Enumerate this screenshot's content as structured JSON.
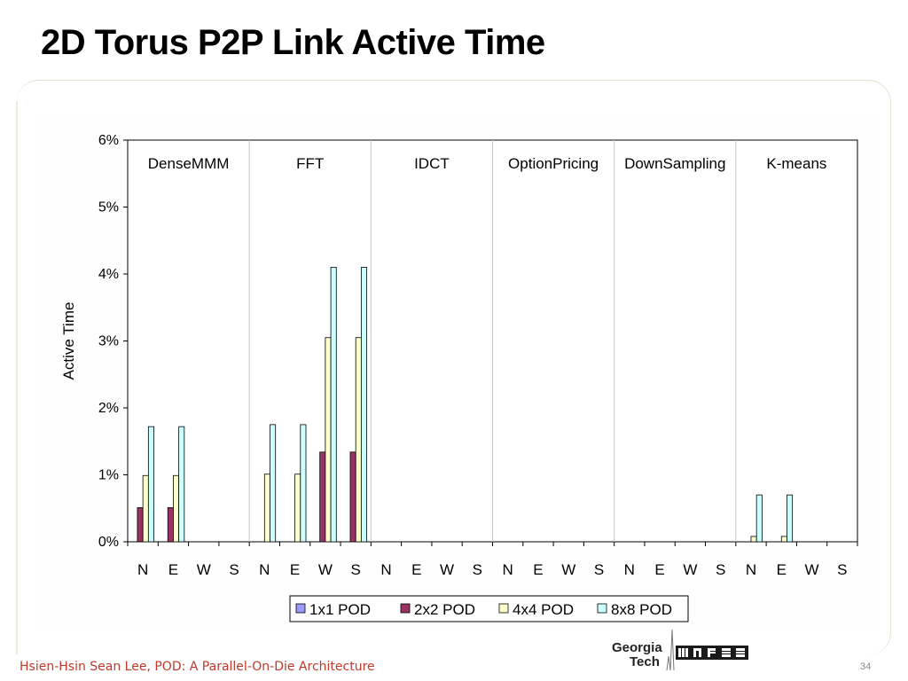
{
  "slide": {
    "title": "2D Torus P2P Link Active Time",
    "footer": "Hsien-Hsin Sean Lee, POD: A Parallel-On-Die Architecture",
    "page_number": "34",
    "logo_primary": "Georgia",
    "logo_secondary": "Tech",
    "logo_mars": "MARS"
  },
  "chart_data": {
    "type": "bar",
    "title": "",
    "xlabel": "",
    "ylabel": "Active Time",
    "ylim": [
      0,
      0.06
    ],
    "yticks": [
      "0%",
      "1%",
      "2%",
      "3%",
      "4%",
      "5%",
      "6%"
    ],
    "groups": [
      "DenseMMM",
      "FFT",
      "IDCT",
      "OptionPricing",
      "DownSampling",
      "K-means"
    ],
    "directions": [
      "N",
      "E",
      "W",
      "S"
    ],
    "legend_position": "bottom",
    "series": [
      {
        "name": "1x1 POD",
        "color": "#9999ff",
        "values": [
          [
            0,
            0,
            0,
            0
          ],
          [
            0,
            0,
            0,
            0
          ],
          [
            0,
            0,
            0,
            0
          ],
          [
            0,
            0,
            0,
            0
          ],
          [
            0,
            0,
            0,
            0
          ],
          [
            0,
            0,
            0,
            0
          ]
        ]
      },
      {
        "name": "2x2 POD",
        "color": "#993366",
        "values": [
          [
            0.0051,
            0.0051,
            0,
            0
          ],
          [
            0,
            0,
            0.0134,
            0.0134
          ],
          [
            0,
            0,
            0,
            0
          ],
          [
            0,
            0,
            0,
            0
          ],
          [
            0,
            0,
            0,
            0
          ],
          [
            0,
            0,
            0,
            0
          ]
        ]
      },
      {
        "name": "4x4 POD",
        "color": "#ffffcc",
        "values": [
          [
            0.0099,
            0.0099,
            0,
            0
          ],
          [
            0.0101,
            0.0101,
            0.0305,
            0.0305
          ],
          [
            0,
            0,
            0,
            0
          ],
          [
            0,
            0,
            0,
            0
          ],
          [
            0,
            0,
            0,
            0
          ],
          [
            0.0008,
            0.0008,
            0,
            0
          ]
        ]
      },
      {
        "name": "8x8 POD",
        "color": "#ccffff",
        "values": [
          [
            0.0172,
            0.0172,
            0,
            0
          ],
          [
            0.0175,
            0.0175,
            0.041,
            0.041
          ],
          [
            0,
            0,
            0,
            0
          ],
          [
            0,
            0,
            0,
            0
          ],
          [
            0,
            0,
            0,
            0
          ],
          [
            0.007,
            0.007,
            0,
            0
          ]
        ]
      }
    ]
  }
}
